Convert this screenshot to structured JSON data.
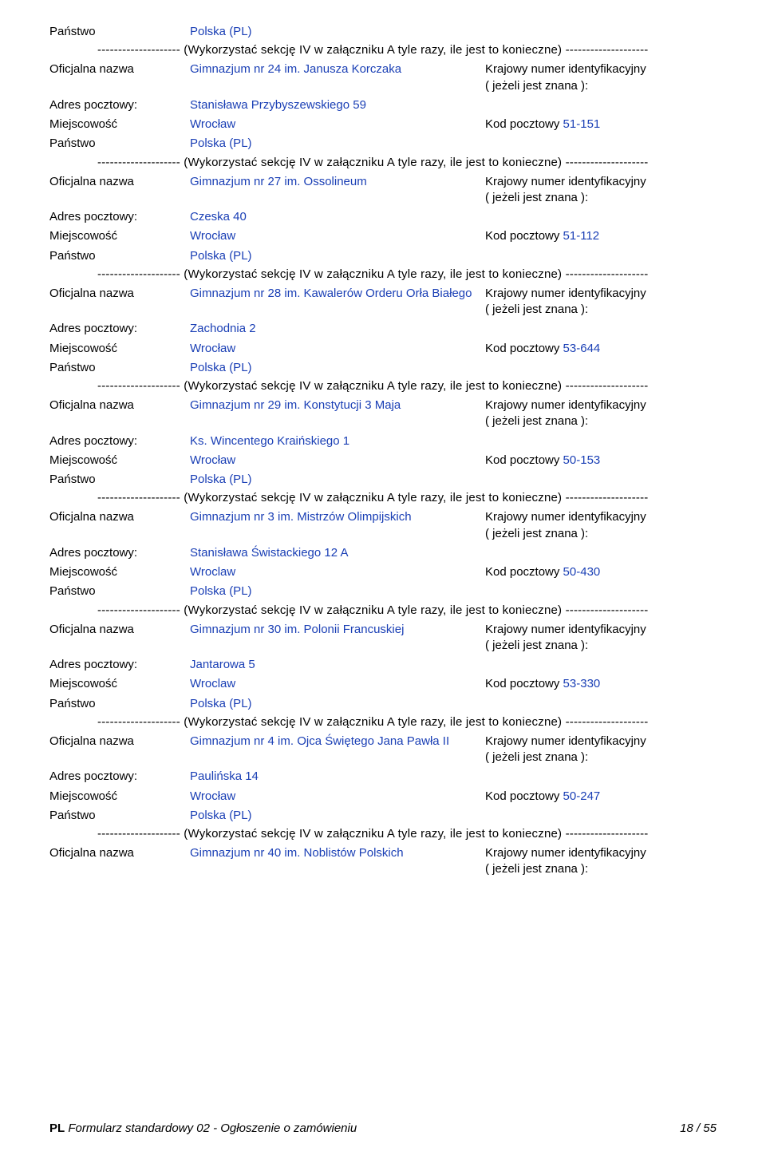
{
  "labels": {
    "country": "Państwo",
    "official_name": "Oficjalna nazwa",
    "postal_address": "Adres pocztowy:",
    "city": "Miejscowość",
    "postcode": "Kod pocztowy",
    "national_id_1": "Krajowy numer identyfikacyjny",
    "national_id_2": "( jeżeli jest znana ):"
  },
  "separator": "-------------------- (Wykorzystać sekcję IV w załączniku A tyle razy, ile jest to konieczne) --------------------",
  "country_value": "Polska (PL)",
  "entries": [
    {
      "name": "Gimnazjum nr 24 im. Janusza Korczaka",
      "address": "Stanisława Przybyszewskiego 59",
      "city": "Wrocław",
      "postcode": "51-151"
    },
    {
      "name": "Gimnazjum nr 27 im. Ossolineum",
      "address": "Czeska 40",
      "city": "Wrocław",
      "postcode": "51-112"
    },
    {
      "name": "Gimnazjum nr 28 im. Kawalerów Orderu Orła Białego",
      "address": "Zachodnia 2",
      "city": "Wrocław",
      "postcode": "53-644"
    },
    {
      "name": "Gimnazjum nr 29 im. Konstytucji 3 Maja",
      "address": "Ks. Wincentego Kraińskiego 1",
      "city": "Wrocław",
      "postcode": "50-153"
    },
    {
      "name": "Gimnazjum nr 3 im. Mistrzów Olimpijskich",
      "address": "Stanisława Świstackiego 12 A",
      "city": "Wroclaw",
      "postcode": "50-430"
    },
    {
      "name": "Gimnazjum nr 30 im. Polonii Francuskiej",
      "address": "Jantarowa 5",
      "city": "Wroclaw",
      "postcode": "53-330"
    },
    {
      "name": "Gimnazjum nr 4 im. Ojca Świętego Jana Pawła II",
      "address": "Paulińska 14",
      "city": "Wrocław",
      "postcode": "50-247"
    },
    {
      "name": "Gimnazjum nr 40 im. Noblistów Polskich",
      "partial": true
    }
  ],
  "footer": {
    "pl": "PL",
    "title": "Formularz standardowy 02 - Ogłoszenie o zamówieniu",
    "page": "18 / 55"
  }
}
